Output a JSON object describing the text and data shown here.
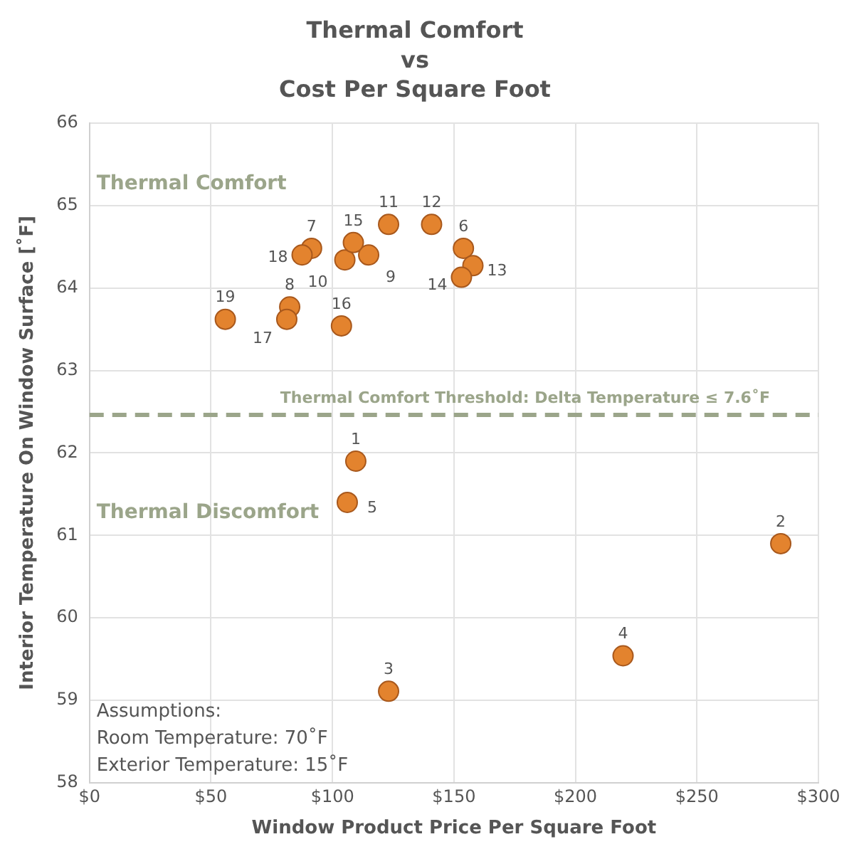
{
  "chart_data": {
    "type": "scatter",
    "title": "Thermal Comfort\nvs\nCost Per Square Foot",
    "xlabel": "Window Product Price Per Square Foot",
    "ylabel": "Interior Temperature On Window Surface [˚F]",
    "series": [
      {
        "color": "#e3832e",
        "x": [
          109.6,
          284.5,
          123.1,
          219.6,
          106.1,
          153.9,
          91.4,
          82.4,
          114.9,
          105.1,
          123.1,
          140.8,
          157.8,
          153.1,
          108.6,
          103.7,
          81.2,
          87.5,
          55.9
        ],
        "values": [
          61.9,
          60.9,
          59.11,
          59.54,
          61.4,
          64.48,
          64.48,
          63.77,
          64.4,
          64.34,
          64.77,
          64.77,
          64.27,
          64.13,
          64.55,
          63.54,
          63.62,
          64.4,
          63.62
        ]
      }
    ],
    "xlim": [
      0,
      300
    ],
    "xticks": [
      {
        "value": 0,
        "label": "$0"
      },
      {
        "value": 50,
        "label": "$50"
      },
      {
        "value": 100,
        "label": "$100"
      },
      {
        "value": 150,
        "label": "$150"
      },
      {
        "value": 200,
        "label": "$200"
      },
      {
        "value": 250,
        "label": "$250"
      },
      {
        "value": 300,
        "label": "$300"
      }
    ],
    "ylim": [
      58,
      66
    ],
    "yticks": [
      58,
      59,
      60,
      61,
      62,
      63,
      64,
      65,
      66
    ],
    "ref_lines": [
      {
        "axis": "y",
        "value": 62.46,
        "label": "Thermal Comfort Threshold: Delta Temperature ≤ 7.6˚F",
        "color": "#9ba58a",
        "line_style": "dashed"
      }
    ],
    "annotations": [
      "Thermal Comfort",
      "Thermal Discomfort",
      "Assumptions:\nRoom Temperature: 70˚F\nExterior Temperature: 15˚F",
      {
        "text": "1",
        "x": 109.6,
        "y": 61.9
      },
      {
        "text": "2",
        "x": 284.5,
        "y": 60.9
      },
      {
        "text": "3",
        "x": 123.1,
        "y": 59.11
      },
      {
        "text": "4",
        "x": 219.6,
        "y": 59.54
      },
      {
        "text": "5",
        "x": 106.1,
        "y": 61.4
      },
      {
        "text": "6",
        "x": 153.9,
        "y": 64.48
      },
      {
        "text": "7",
        "x": 91.4,
        "y": 64.48
      },
      {
        "text": "8",
        "x": 82.4,
        "y": 63.77
      },
      {
        "text": "9",
        "x": 114.9,
        "y": 64.4
      },
      {
        "text": "10",
        "x": 105.1,
        "y": 64.34
      },
      {
        "text": "11",
        "x": 123.1,
        "y": 64.77
      },
      {
        "text": "12",
        "x": 140.8,
        "y": 64.77
      },
      {
        "text": "13",
        "x": 157.8,
        "y": 64.27
      },
      {
        "text": "14",
        "x": 153.1,
        "y": 64.13
      },
      {
        "text": "15",
        "x": 108.6,
        "y": 64.55
      },
      {
        "text": "16",
        "x": 103.7,
        "y": 63.54
      },
      {
        "text": "17",
        "x": 81.2,
        "y": 63.62
      },
      {
        "text": "18",
        "x": 87.5,
        "y": 64.4
      },
      {
        "text": "19",
        "x": 55.9,
        "y": 63.62
      }
    ],
    "grid": true,
    "legend": false,
    "marker": "circle"
  }
}
